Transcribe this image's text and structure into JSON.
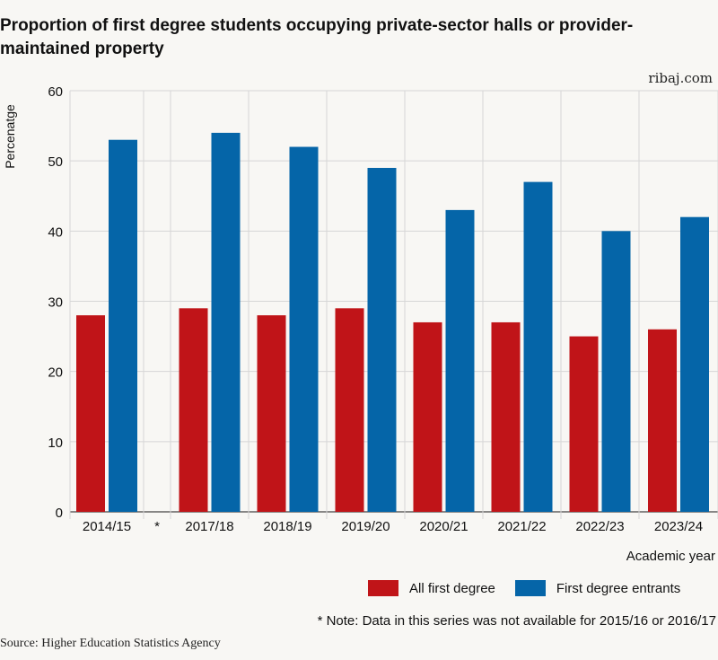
{
  "header": {
    "title": "Proportion of first degree students occupying private-sector halls or provider-maintained property",
    "brand": "ribaj.com"
  },
  "colors": {
    "all_first_degree": "#c01418",
    "first_degree_entrants": "#0565a8"
  },
  "chart_data": {
    "type": "bar",
    "categories": [
      "2014/15",
      "*",
      "2017/18",
      "2018/19",
      "2019/20",
      "2020/21",
      "2021/22",
      "2022/23",
      "2023/24"
    ],
    "series": [
      {
        "name": "All first degree",
        "values": [
          28,
          null,
          29,
          28,
          29,
          27,
          27,
          25,
          26
        ]
      },
      {
        "name": "First degree entrants",
        "values": [
          53,
          null,
          54,
          52,
          49,
          43,
          47,
          40,
          42
        ]
      }
    ],
    "title": "Proportion of first degree students occupying private-sector halls or provider-maintained property",
    "xlabel": "Academic year",
    "ylabel": "Percenatge",
    "ylim": [
      0,
      60
    ],
    "yticks": [
      0,
      10,
      20,
      30,
      40,
      50,
      60
    ],
    "grid": true,
    "legend_position": "bottom-right"
  },
  "footer": {
    "note": "* Note: Data in this series was not available for 2015/16 or 2016/17",
    "source": "Source: Higher Education Statistics Agency"
  }
}
